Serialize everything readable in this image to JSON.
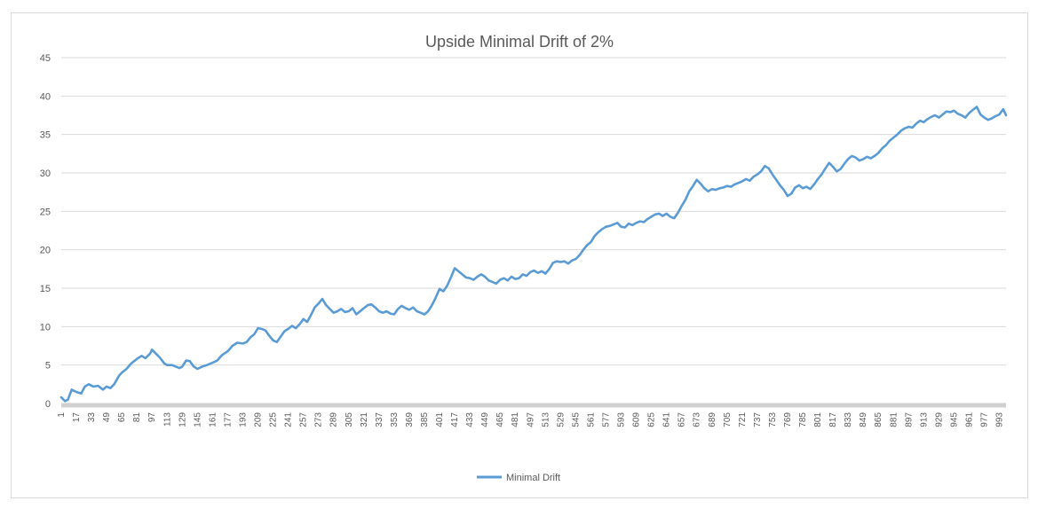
{
  "chart_data": {
    "type": "line",
    "title": "Upside Minimal Drift  of 2%",
    "xlabel": "",
    "ylabel": "",
    "ylim": [
      0,
      45
    ],
    "yticks": [
      0,
      5,
      10,
      15,
      20,
      25,
      30,
      35,
      40,
      45
    ],
    "xlim": [
      1,
      1000
    ],
    "xticks": [
      1,
      17,
      33,
      49,
      65,
      81,
      97,
      113,
      129,
      145,
      161,
      177,
      193,
      209,
      225,
      241,
      257,
      273,
      289,
      305,
      321,
      337,
      353,
      369,
      385,
      401,
      417,
      433,
      449,
      465,
      481,
      497,
      513,
      529,
      545,
      561,
      577,
      593,
      609,
      625,
      641,
      657,
      673,
      689,
      705,
      721,
      737,
      753,
      769,
      785,
      801,
      817,
      833,
      849,
      865,
      881,
      897,
      913,
      929,
      945,
      961,
      977,
      993
    ],
    "grid": true,
    "legend_position": "bottom",
    "series": [
      {
        "name": "Minimal Drift",
        "color": "#5b9bd5",
        "x": [
          1,
          5,
          8,
          12,
          17,
          22,
          26,
          30,
          35,
          40,
          45,
          49,
          53,
          57,
          62,
          65,
          70,
          75,
          81,
          86,
          90,
          95,
          97,
          101,
          105,
          110,
          113,
          118,
          122,
          126,
          129,
          133,
          137,
          141,
          145,
          150,
          155,
          161,
          166,
          171,
          177,
          182,
          187,
          193,
          197,
          201,
          205,
          209,
          213,
          217,
          221,
          225,
          229,
          233,
          237,
          241,
          245,
          249,
          253,
          257,
          261,
          265,
          269,
          273,
          277,
          281,
          285,
          289,
          293,
          297,
          301,
          305,
          309,
          313,
          317,
          321,
          325,
          329,
          333,
          337,
          341,
          345,
          349,
          353,
          357,
          361,
          365,
          369,
          373,
          377,
          381,
          385,
          389,
          393,
          397,
          401,
          405,
          409,
          413,
          417,
          421,
          425,
          429,
          433,
          437,
          441,
          445,
          449,
          453,
          457,
          461,
          465,
          469,
          473,
          477,
          481,
          485,
          489,
          493,
          497,
          501,
          505,
          509,
          513,
          517,
          521,
          525,
          529,
          533,
          537,
          541,
          545,
          549,
          553,
          557,
          561,
          565,
          569,
          573,
          577,
          581,
          585,
          589,
          593,
          597,
          601,
          605,
          609,
          613,
          617,
          621,
          625,
          629,
          633,
          637,
          641,
          645,
          649,
          653,
          657,
          661,
          665,
          669,
          673,
          677,
          681,
          685,
          689,
          693,
          697,
          701,
          705,
          709,
          713,
          717,
          721,
          725,
          729,
          733,
          737,
          741,
          745,
          749,
          753,
          757,
          761,
          765,
          769,
          773,
          777,
          781,
          785,
          789,
          793,
          797,
          801,
          805,
          809,
          813,
          817,
          821,
          825,
          829,
          833,
          837,
          841,
          845,
          849,
          853,
          857,
          861,
          865,
          869,
          873,
          877,
          881,
          885,
          889,
          893,
          897,
          901,
          905,
          909,
          913,
          917,
          921,
          925,
          929,
          933,
          937,
          941,
          945,
          949,
          953,
          957,
          961,
          965,
          969,
          973,
          977,
          981,
          985,
          989,
          993,
          997,
          1000
        ],
        "y": [
          0.8,
          0.3,
          0.5,
          1.8,
          1.5,
          1.3,
          2.2,
          2.5,
          2.2,
          2.3,
          1.8,
          2.2,
          2.0,
          2.5,
          3.6,
          4.0,
          4.5,
          5.2,
          5.8,
          6.2,
          5.9,
          6.5,
          7.0,
          6.5,
          6.0,
          5.2,
          5.0,
          5.0,
          4.8,
          4.6,
          4.8,
          5.6,
          5.5,
          4.8,
          4.5,
          4.8,
          5.0,
          5.3,
          5.6,
          6.3,
          6.8,
          7.5,
          7.9,
          7.8,
          8.0,
          8.6,
          9.0,
          9.8,
          9.7,
          9.5,
          8.8,
          8.2,
          8.0,
          8.7,
          9.4,
          9.7,
          10.1,
          9.8,
          10.3,
          11.0,
          10.6,
          11.5,
          12.5,
          13.0,
          13.6,
          12.8,
          12.3,
          11.8,
          12.0,
          12.3,
          11.9,
          12.0,
          12.4,
          11.6,
          12.0,
          12.4,
          12.8,
          12.9,
          12.5,
          12.0,
          11.8,
          12.0,
          11.7,
          11.6,
          12.3,
          12.7,
          12.4,
          12.2,
          12.5,
          12.0,
          11.8,
          11.6,
          12.0,
          12.8,
          13.8,
          14.9,
          14.6,
          15.3,
          16.4,
          17.6,
          17.2,
          16.8,
          16.4,
          16.3,
          16.1,
          16.5,
          16.8,
          16.5,
          16.0,
          15.8,
          15.6,
          16.1,
          16.3,
          16.0,
          16.5,
          16.2,
          16.3,
          16.8,
          16.6,
          17.1,
          17.3,
          17.0,
          17.2,
          16.9,
          17.5,
          18.3,
          18.5,
          18.4,
          18.5,
          18.2,
          18.6,
          18.8,
          19.3,
          20.0,
          20.6,
          21.0,
          21.8,
          22.3,
          22.7,
          23.0,
          23.1,
          23.3,
          23.5,
          23.0,
          22.9,
          23.4,
          23.2,
          23.5,
          23.7,
          23.6,
          24.0,
          24.3,
          24.6,
          24.7,
          24.4,
          24.7,
          24.3,
          24.1,
          24.8,
          25.7,
          26.5,
          27.6,
          28.3,
          29.1,
          28.6,
          28.0,
          27.6,
          27.9,
          27.8,
          28.0,
          28.1,
          28.3,
          28.2,
          28.5,
          28.7,
          28.9,
          29.2,
          29.0,
          29.5,
          29.8,
          30.2,
          30.9,
          30.6,
          29.8,
          29.1,
          28.4,
          27.8,
          27.0,
          27.3,
          28.1,
          28.4,
          28.0,
          28.2,
          27.9,
          28.5,
          29.2,
          29.8,
          30.6,
          31.3,
          30.8,
          30.2,
          30.5,
          31.2,
          31.8,
          32.2,
          32.0,
          31.6,
          31.8,
          32.1,
          31.9,
          32.2,
          32.6,
          33.2,
          33.6,
          34.2,
          34.6,
          35.0,
          35.5,
          35.8,
          36.0,
          35.9,
          36.4,
          36.8,
          36.6,
          37.0,
          37.3,
          37.5,
          37.2,
          37.6,
          38.0,
          37.9,
          38.1,
          37.7,
          37.5,
          37.2,
          37.8,
          38.2,
          38.6,
          37.6,
          37.2,
          36.9,
          37.1,
          37.4,
          37.6,
          38.3,
          37.5
        ]
      }
    ]
  }
}
